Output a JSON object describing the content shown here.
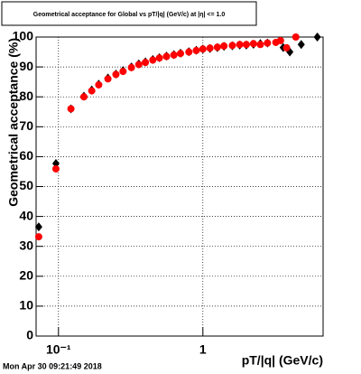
{
  "chart_data": {
    "type": "scatter",
    "title": "Geometrical acceptance for Global vs pT/|q| (GeV/c) at |η| <= 1.0",
    "x_label": "pT/|q| (GeV/c)",
    "y_label": "Geometrical acceptance (%)",
    "footer": "Mon Apr 30 09:21:49 2018",
    "xscale": "log",
    "xlim": [
      0.07,
      6.8
    ],
    "ylim": [
      0,
      100
    ],
    "xticks": [
      {
        "value": 0.1,
        "label": "10⁻¹"
      },
      1
    ],
    "yticks": [
      0,
      10,
      20,
      30,
      40,
      50,
      60,
      70,
      80,
      90,
      100
    ],
    "grid": true,
    "series": [
      {
        "name": "black",
        "color": "#000000",
        "x": [
          0.073,
          0.096,
          0.122,
          0.15,
          0.17,
          0.19,
          0.22,
          0.25,
          0.28,
          0.32,
          0.36,
          0.4,
          0.45,
          0.5,
          0.56,
          0.63,
          0.7,
          0.8,
          0.9,
          1.0,
          1.12,
          1.26,
          1.4,
          1.6,
          1.8,
          2.0,
          2.24,
          2.5,
          2.8,
          3.6,
          4.0,
          4.8,
          6.2
        ],
        "values": [
          36.5,
          57.7,
          76,
          80.2,
          82.3,
          84.2,
          86.3,
          87.6,
          88.8,
          90,
          91,
          91.7,
          92.5,
          93.1,
          93.6,
          94.1,
          94.6,
          95.1,
          95.6,
          96,
          96.2,
          96.5,
          96.9,
          97.1,
          97.3,
          97.3,
          97.6,
          97.8,
          98,
          96.5,
          95,
          97.5,
          100
        ]
      },
      {
        "name": "red",
        "color": "#ff0000",
        "x": [
          0.073,
          0.096,
          0.122,
          0.15,
          0.17,
          0.19,
          0.22,
          0.25,
          0.28,
          0.32,
          0.36,
          0.4,
          0.45,
          0.5,
          0.56,
          0.63,
          0.7,
          0.8,
          0.9,
          1.0,
          1.12,
          1.26,
          1.4,
          1.6,
          1.8,
          2.0,
          2.24,
          2.5,
          2.8,
          3.2,
          3.45,
          3.8,
          4.4
        ],
        "values": [
          33.2,
          55.9,
          76,
          80,
          82,
          84,
          86,
          87.5,
          88.5,
          89.8,
          90.8,
          91.5,
          92.3,
          93,
          93.5,
          94,
          94.5,
          95,
          95.5,
          96,
          96.3,
          96.6,
          97,
          97.2,
          97.5,
          97.5,
          97.8,
          97.5,
          98,
          98.2,
          98.8,
          96.4,
          100
        ]
      }
    ]
  }
}
